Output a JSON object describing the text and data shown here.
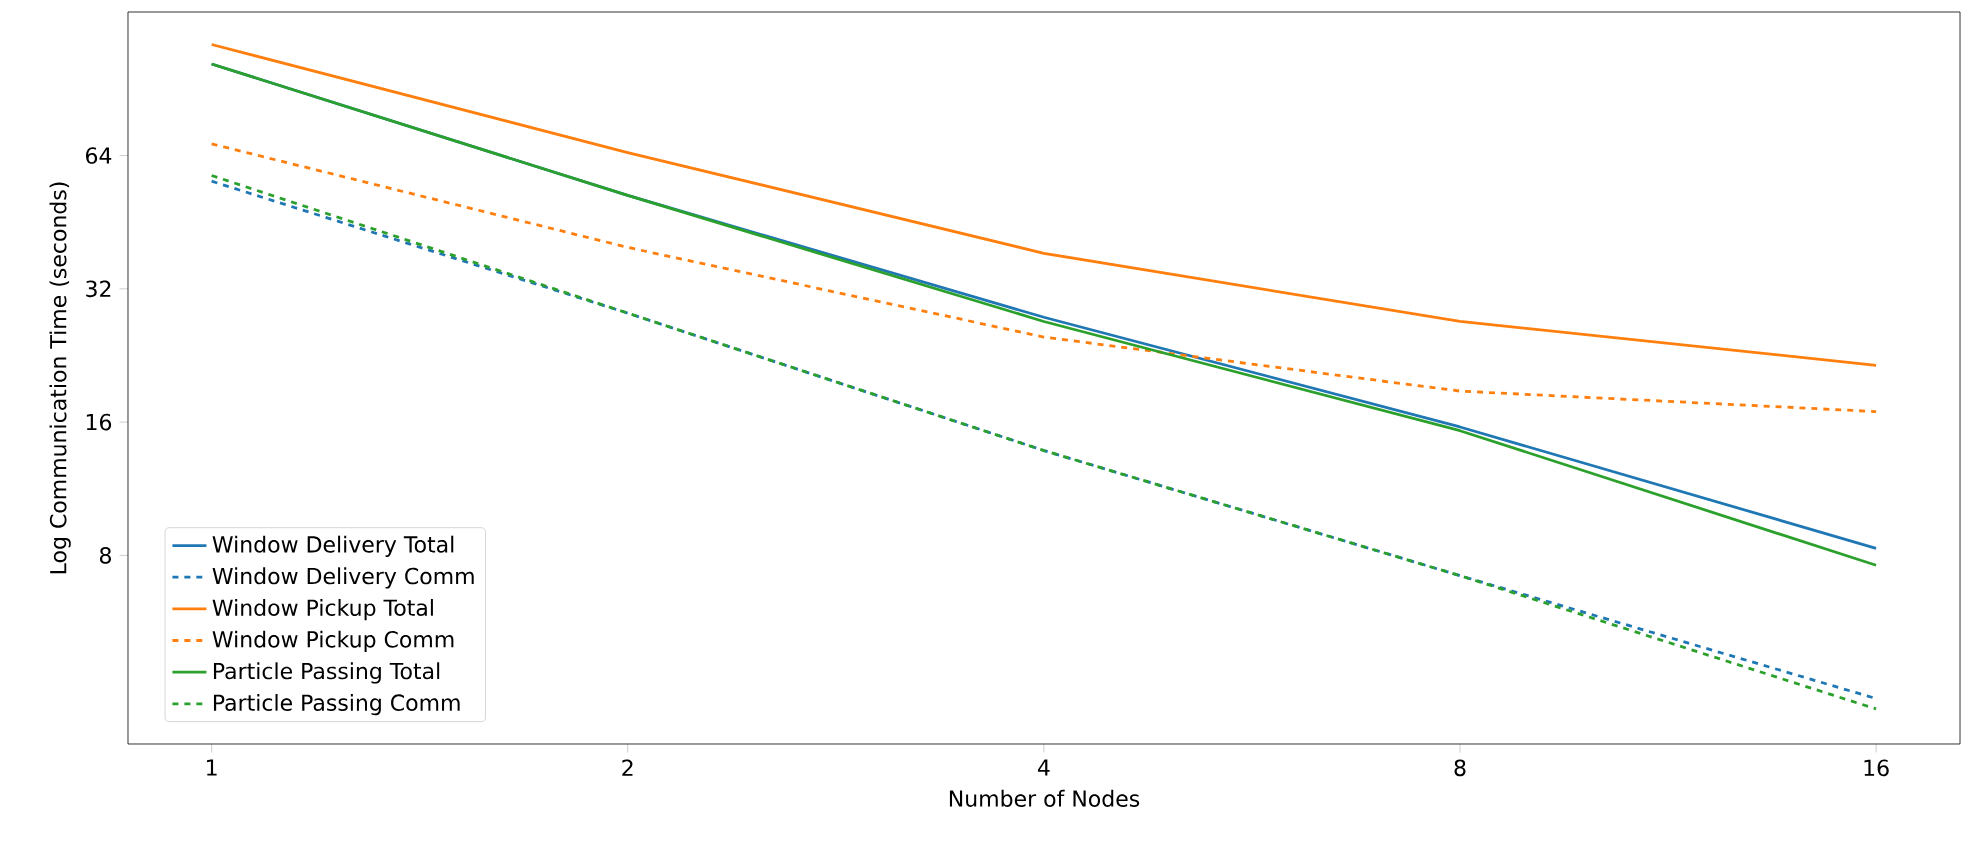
{
  "chart_data": {
    "type": "line",
    "xlabel": "Number of Nodes",
    "ylabel": "Log Communication Time (seconds)",
    "x": [
      1,
      2,
      4,
      8,
      16
    ],
    "log": "xy",
    "xlim": [
      0.87,
      18.4
    ],
    "ylim": [
      3.0,
      135
    ],
    "xticks": [
      1,
      2,
      4,
      8,
      16
    ],
    "yticks": [
      8,
      16,
      32,
      64
    ],
    "legend": "bottom left",
    "grid": false,
    "marker": "none",
    "series": [
      {
        "name": "Window Delivery Total",
        "color": "#1f77b4",
        "line_style": "solid",
        "values": [
          103,
          52,
          27.6,
          15.6,
          8.3
        ]
      },
      {
        "name": "Window Delivery Comm",
        "color": "#1f77b4",
        "line_style": "dashed",
        "values": [
          56,
          28.2,
          13.8,
          7.2,
          3.8
        ]
      },
      {
        "name": "Window Pickup Total",
        "color": "#ff7f0e",
        "line_style": "solid",
        "values": [
          114,
          65,
          38.5,
          27,
          21.5
        ]
      },
      {
        "name": "Window Pickup Comm",
        "color": "#ff7f0e",
        "line_style": "dashed",
        "values": [
          68,
          39.7,
          24.9,
          18.8,
          16.9
        ]
      },
      {
        "name": "Particle Passing Total",
        "color": "#2ca02c",
        "line_style": "solid",
        "values": [
          103,
          52,
          27,
          15.3,
          7.6
        ]
      },
      {
        "name": "Particle Passing Comm",
        "color": "#2ca02c",
        "line_style": "dashed",
        "values": [
          57.7,
          28.2,
          13.8,
          7.2,
          3.6
        ]
      }
    ]
  }
}
